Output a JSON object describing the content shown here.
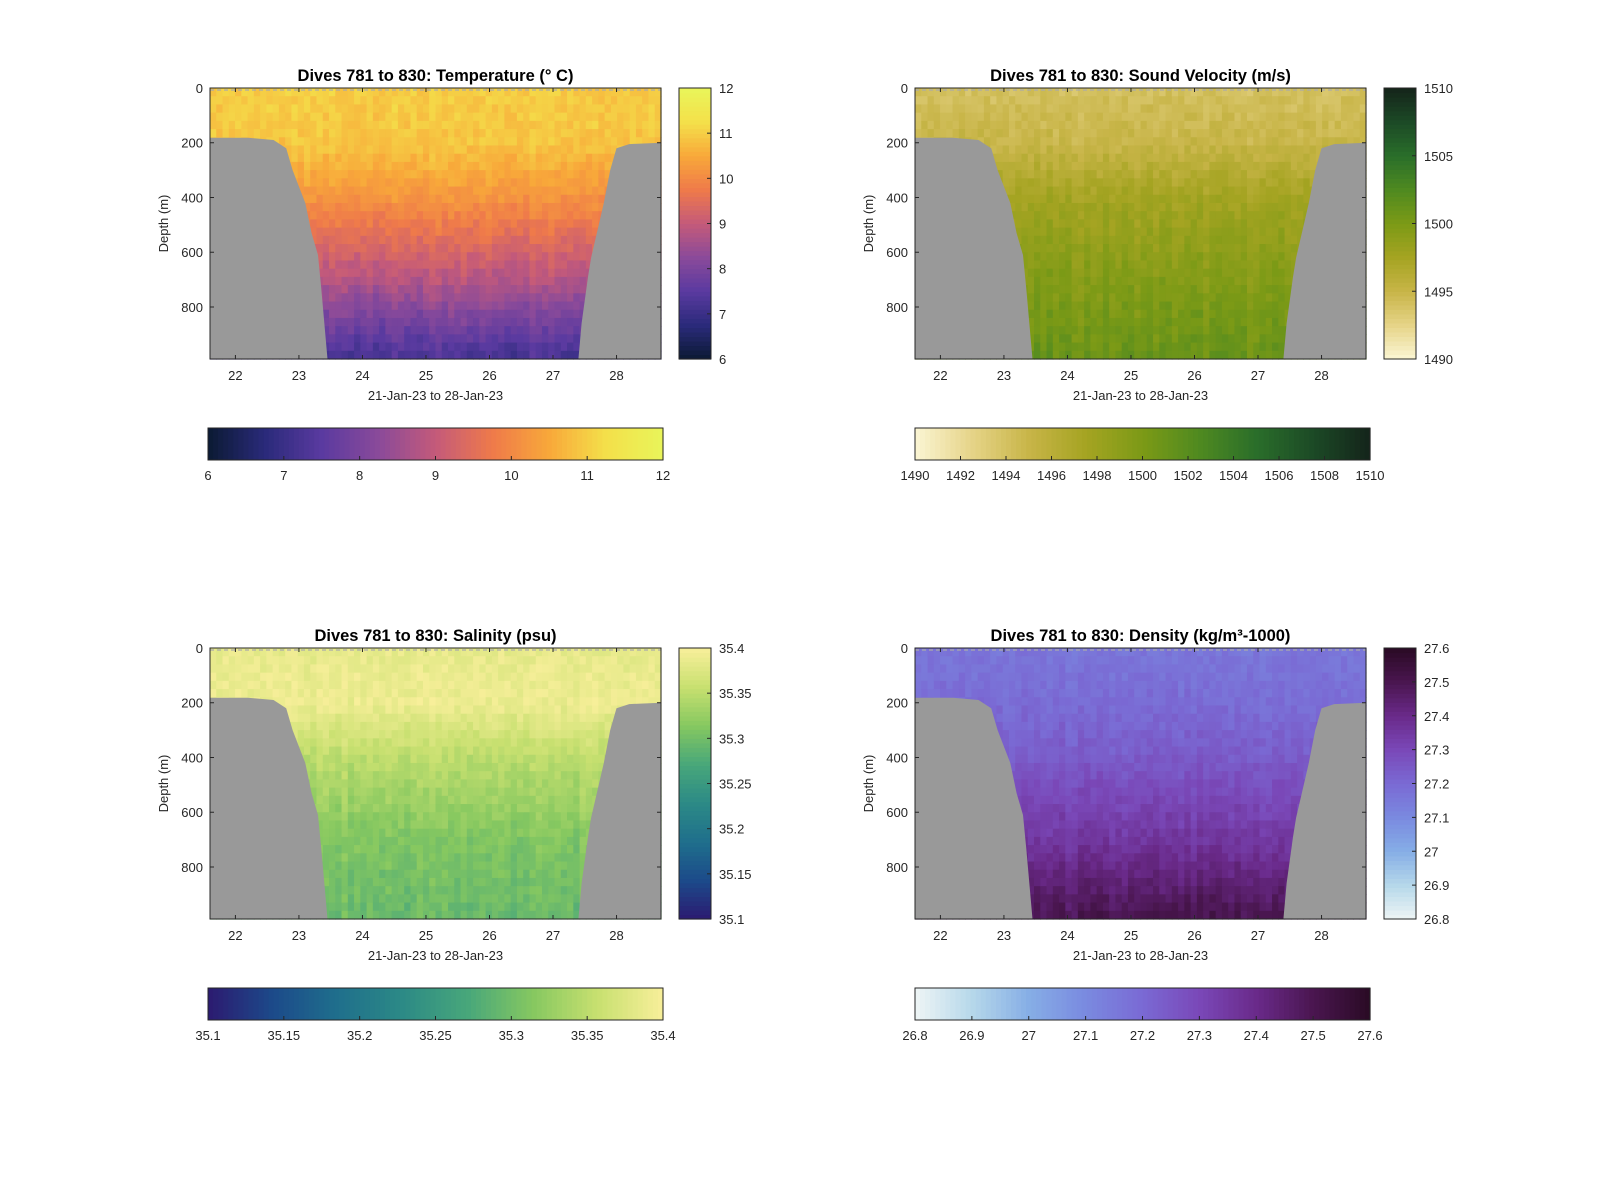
{
  "chart_data": [
    {
      "type": "heatmap",
      "title": "Dives 781 to 830: Temperature (° C)",
      "xlabel": "21-Jan-23 to 28-Jan-23",
      "ylabel": "Depth (m)",
      "xlim": [
        21.6,
        28.7
      ],
      "ylim": [
        0,
        990
      ],
      "y_reversed": true,
      "x_ticks": [
        22,
        23,
        24,
        25,
        26,
        27,
        28
      ],
      "y_ticks": [
        0,
        200,
        400,
        600,
        800
      ],
      "colorbar_range": [
        6,
        12
      ],
      "colorbar_ticks": [
        6,
        7,
        8,
        9,
        10,
        11,
        12
      ],
      "horizontal_colorbar_ticks": [
        6,
        7,
        8,
        9,
        10,
        11,
        12
      ],
      "colormap": [
        "#0b1a33",
        "#2a2a7a",
        "#5a3aa0",
        "#8a4a9a",
        "#c45a7a",
        "#ef7a4a",
        "#f8a83a",
        "#f4e04a",
        "#e9f55a"
      ],
      "mask_color": "#999999",
      "surface": {
        "depth": [
          0,
          200,
          400,
          700,
          990
        ],
        "value": [
          11.0,
          10.9,
          10.2,
          8.8,
          7.2
        ]
      }
    },
    {
      "type": "heatmap",
      "title": "Dives 781 to 830: Sound Velocity (m/s)",
      "xlabel": "21-Jan-23 to 28-Jan-23",
      "ylabel": "Depth (m)",
      "xlim": [
        21.6,
        28.7
      ],
      "ylim": [
        0,
        990
      ],
      "y_reversed": true,
      "x_ticks": [
        22,
        23,
        24,
        25,
        26,
        27,
        28
      ],
      "y_ticks": [
        0,
        200,
        400,
        600,
        800
      ],
      "colorbar_range": [
        1490,
        1510
      ],
      "colorbar_ticks": [
        1490,
        1495,
        1500,
        1505,
        1510
      ],
      "horizontal_colorbar_ticks": [
        1490,
        1492,
        1494,
        1496,
        1498,
        1500,
        1502,
        1504,
        1506,
        1508,
        1510
      ],
      "colormap": [
        "#fbf6d4",
        "#e6d488",
        "#c8b548",
        "#a5a422",
        "#7c9a16",
        "#4f8a20",
        "#2a6e2a",
        "#1c4a26",
        "#14241a"
      ],
      "mask_color": "#999999",
      "surface": {
        "depth": [
          0,
          200,
          400,
          700,
          990
        ],
        "value": [
          1494.0,
          1495.0,
          1497.5,
          1499.5,
          1501.0
        ]
      }
    },
    {
      "type": "heatmap",
      "title": "Dives 781 to 830: Salinity (psu)",
      "xlabel": "21-Jan-23 to 28-Jan-23",
      "ylabel": "Depth (m)",
      "xlim": [
        21.6,
        28.7
      ],
      "ylim": [
        0,
        990
      ],
      "y_reversed": true,
      "x_ticks": [
        22,
        23,
        24,
        25,
        26,
        27,
        28
      ],
      "y_ticks": [
        0,
        200,
        400,
        600,
        800
      ],
      "colorbar_range": [
        35.1,
        35.4
      ],
      "colorbar_ticks": [
        35.1,
        35.15,
        35.2,
        35.25,
        35.3,
        35.35,
        35.4
      ],
      "horizontal_colorbar_ticks": [
        35.1,
        35.15,
        35.2,
        35.25,
        35.3,
        35.35,
        35.4
      ],
      "colormap": [
        "#2c1a70",
        "#1c4a8a",
        "#1f6f8c",
        "#2c8a86",
        "#48a77a",
        "#86c860",
        "#c8e070",
        "#f8ef9a"
      ],
      "mask_color": "#999999",
      "surface": {
        "depth": [
          0,
          200,
          400,
          700,
          990
        ],
        "value": [
          35.385,
          35.39,
          35.35,
          35.31,
          35.295
        ]
      }
    },
    {
      "type": "heatmap",
      "title": "Dives 781 to 830: Density (kg/m³-1000)",
      "xlabel": "21-Jan-23 to 28-Jan-23",
      "ylabel": "Depth (m)",
      "xlim": [
        21.6,
        28.7
      ],
      "ylim": [
        0,
        990
      ],
      "y_reversed": true,
      "x_ticks": [
        22,
        23,
        24,
        25,
        26,
        27,
        28
      ],
      "y_ticks": [
        0,
        200,
        400,
        600,
        800
      ],
      "colorbar_range": [
        26.8,
        27.6
      ],
      "colorbar_ticks": [
        26.8,
        26.9,
        27,
        27.1,
        27.2,
        27.3,
        27.4,
        27.5,
        27.6
      ],
      "horizontal_colorbar_ticks": [
        26.8,
        26.9,
        27,
        27.1,
        27.2,
        27.3,
        27.4,
        27.5,
        27.6
      ],
      "colormap": [
        "#eef5f5",
        "#b6d8ea",
        "#86aee6",
        "#7a8ae0",
        "#7a6ad4",
        "#7a48b8",
        "#6a2a8a",
        "#4a1650",
        "#2a0a24"
      ],
      "mask_color": "#999999",
      "surface": {
        "depth": [
          0,
          200,
          400,
          700,
          990
        ],
        "value": [
          27.16,
          27.19,
          27.24,
          27.35,
          27.5
        ]
      }
    }
  ]
}
